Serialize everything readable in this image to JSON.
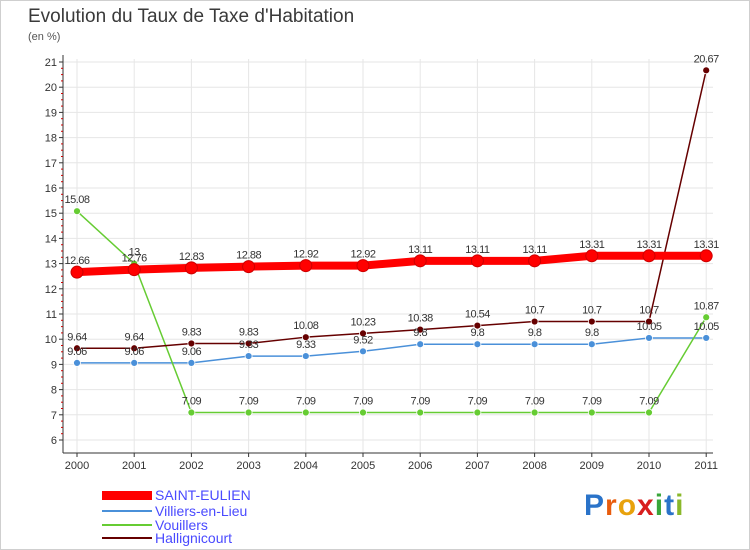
{
  "colors": {
    "saint_eulien": "#ff0000",
    "villiers": "#4a90d9",
    "vouillers": "#66cc33",
    "hallignicourt": "#660000",
    "axis": "#333333",
    "grid": "#e6e6e6"
  },
  "logo": {
    "letters": [
      "P",
      "r",
      "o",
      "x",
      "i",
      "t",
      "i"
    ],
    "colors": [
      "#2a73c9",
      "#e85c0d",
      "#e8a20d",
      "#d81e1e",
      "#3aa63a",
      "#2a73c9",
      "#8ab82a"
    ]
  },
  "chart_data": {
    "type": "line",
    "title": "Evolution du Taux de Taxe d'Habitation",
    "subtitle": "(en %)",
    "x": [
      "2000",
      "2001",
      "2002",
      "2003",
      "2004",
      "2005",
      "2006",
      "2007",
      "2008",
      "2009",
      "2010",
      "2011"
    ],
    "ylim": [
      6,
      21
    ],
    "yticks": [
      "6",
      "7",
      "8",
      "9",
      "10",
      "11",
      "12",
      "13",
      "14",
      "15",
      "16",
      "17",
      "18",
      "19",
      "20",
      "21"
    ],
    "grid": true,
    "legend_position": "bottom-left",
    "series": [
      {
        "name": "SAINT-EULIEN",
        "color": "#ff0000",
        "values": [
          12.66,
          12.76,
          12.83,
          12.88,
          12.92,
          12.92,
          13.11,
          13.11,
          13.11,
          13.31,
          13.31,
          13.31
        ],
        "labels": [
          "12.66",
          "12.76",
          "12.83",
          "12.88",
          "12.92",
          "12.92",
          "13.11",
          "13.11",
          "13.11",
          "13.31",
          "13.31",
          "13.31"
        ]
      },
      {
        "name": "Villiers-en-Lieu",
        "color": "#4a90d9",
        "values": [
          9.06,
          9.06,
          9.06,
          9.33,
          9.33,
          9.52,
          9.8,
          9.8,
          9.8,
          9.8,
          10.05,
          10.05
        ],
        "labels": [
          "9.06",
          "9.06",
          "9.06",
          "9.33",
          "9.33",
          "9.52",
          "9.8",
          "9.8",
          "9.8",
          "9.8",
          "10.05",
          "10.05"
        ]
      },
      {
        "name": "Vouillers",
        "color": "#66cc33",
        "values": [
          15.08,
          13,
          7.09,
          7.09,
          7.09,
          7.09,
          7.09,
          7.09,
          7.09,
          7.09,
          7.09,
          10.87
        ],
        "labels": [
          "15.08",
          "13",
          "7.09",
          "7.09",
          "7.09",
          "7.09",
          "7.09",
          "7.09",
          "7.09",
          "7.09",
          "7.09",
          "10.87"
        ]
      },
      {
        "name": "Hallignicourt",
        "color": "#660000",
        "values": [
          9.64,
          9.64,
          9.83,
          9.83,
          10.08,
          10.23,
          10.38,
          10.54,
          10.7,
          10.7,
          10.7,
          20.67
        ],
        "labels": [
          "9.64",
          "9.64",
          "9.83",
          "9.83",
          "10.08",
          "10.23",
          "10.38",
          "10.54",
          "10.7",
          "10.7",
          "10.7",
          "20.67"
        ]
      }
    ]
  }
}
